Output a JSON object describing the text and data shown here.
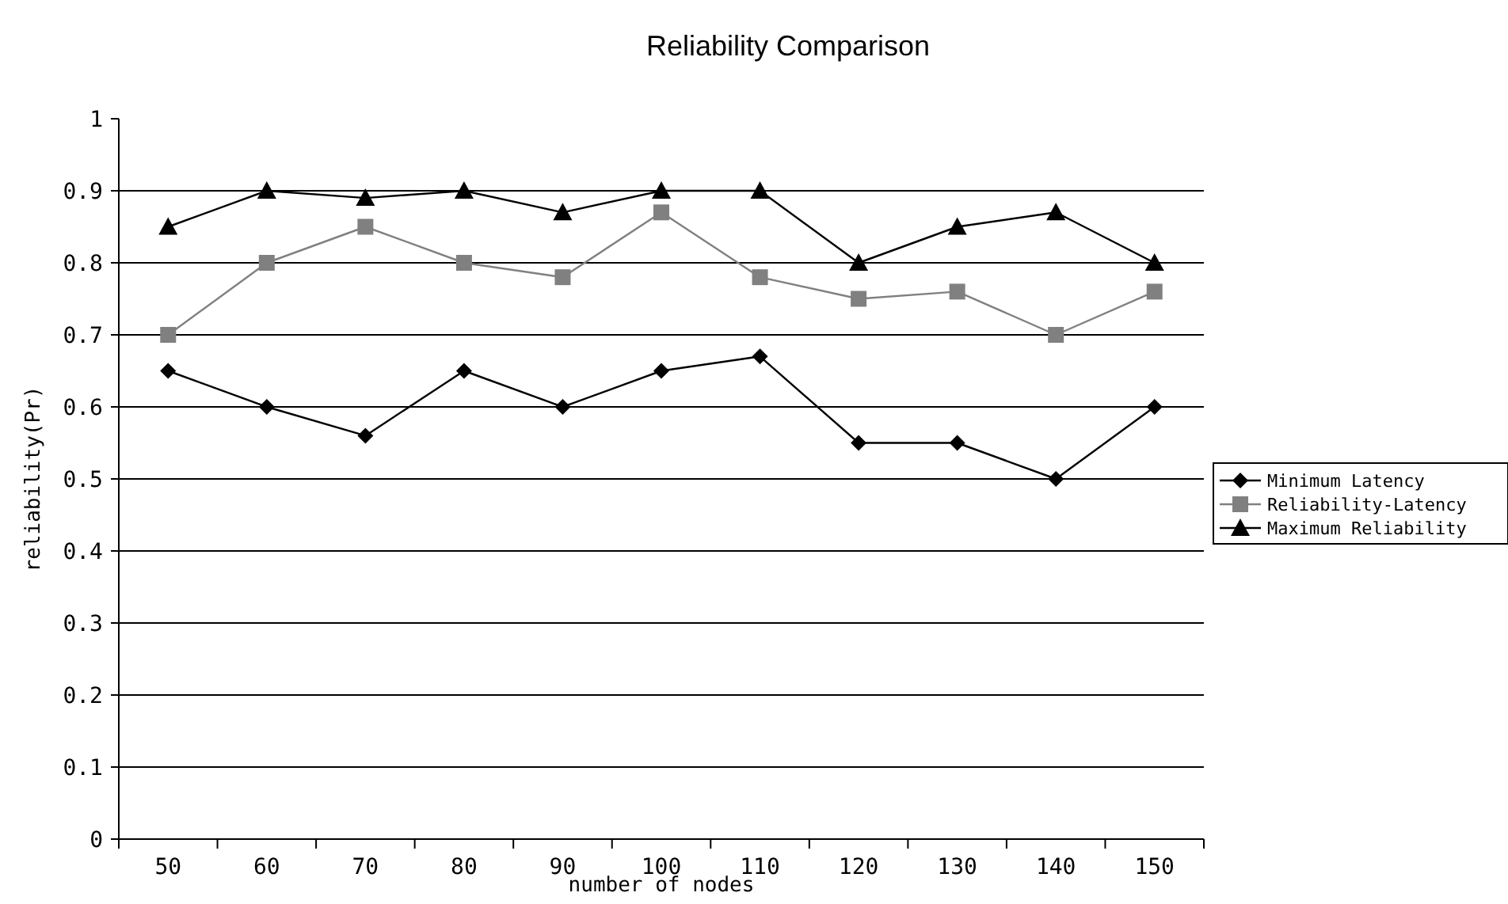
{
  "chart_data": {
    "type": "line",
    "title": "Reliability Comparison",
    "xlabel": "number of nodes",
    "ylabel": "reliability(Pr)",
    "categories": [
      "50",
      "60",
      "70",
      "80",
      "90",
      "100",
      "110",
      "120",
      "130",
      "140",
      "150"
    ],
    "series": [
      {
        "name": "Minimum Latency",
        "color": "#000000",
        "marker": "diamond",
        "values": [
          0.65,
          0.6,
          0.56,
          0.65,
          0.6,
          0.65,
          0.67,
          0.55,
          0.55,
          0.5,
          0.6
        ]
      },
      {
        "name": "Reliability-Latency",
        "color": "#808080",
        "marker": "square",
        "values": [
          0.7,
          0.8,
          0.85,
          0.8,
          0.78,
          0.87,
          0.78,
          0.75,
          0.76,
          0.7,
          0.76
        ]
      },
      {
        "name": "Maximum Reliability",
        "color": "#000000",
        "marker": "triangle",
        "values": [
          0.85,
          0.9,
          0.89,
          0.9,
          0.87,
          0.9,
          0.9,
          0.8,
          0.85,
          0.87,
          0.8
        ]
      }
    ],
    "ylim": [
      0,
      1
    ],
    "yticks": [
      0,
      0.1,
      0.2,
      0.3,
      0.4,
      0.5,
      0.6,
      0.7,
      0.8,
      0.9,
      1
    ],
    "grid": "y",
    "legend": "right"
  }
}
